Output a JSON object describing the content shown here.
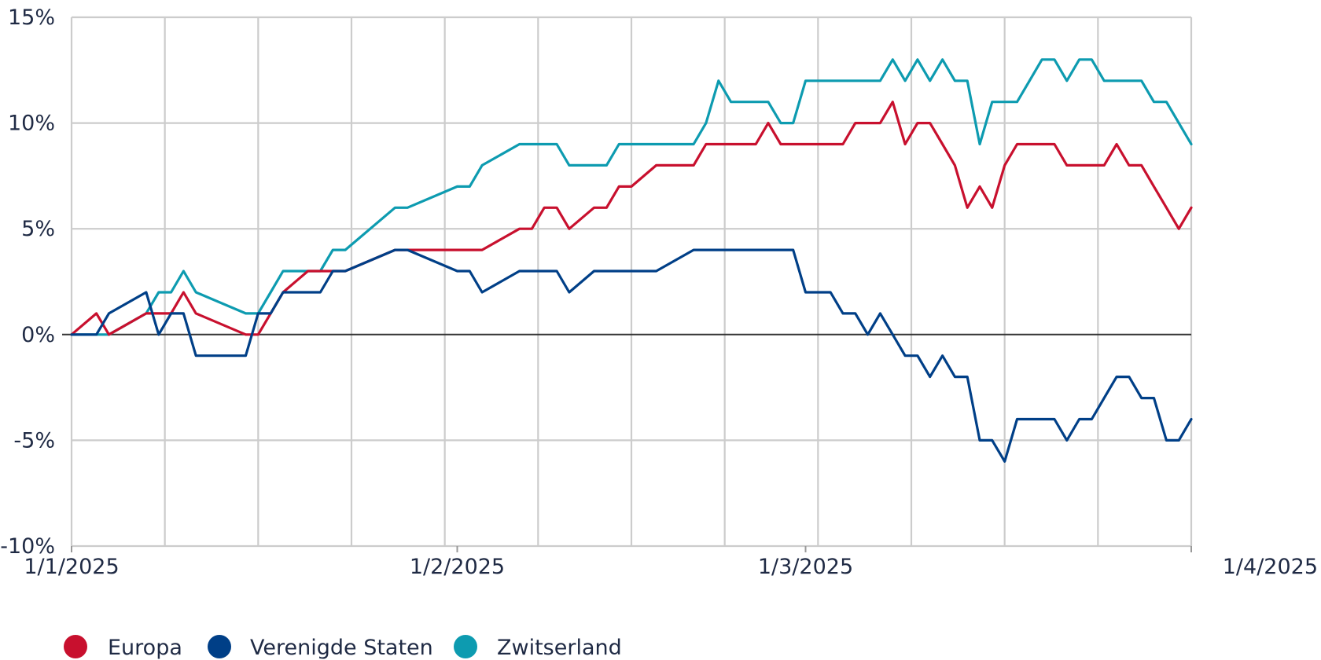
{
  "chart_data": {
    "type": "line",
    "title": "",
    "xlabel": "",
    "ylabel": "",
    "ylim": [
      -10,
      15
    ],
    "y_ticks": [
      "15%",
      "10%",
      "5%",
      "0%",
      "-5%",
      "-10%"
    ],
    "y_tick_values": [
      15,
      10,
      5,
      0,
      -5,
      -10
    ],
    "x_range": [
      "2025-01-01",
      "2025-04-01"
    ],
    "x_ticks": [
      "1/1/2025",
      "1/2/2025",
      "1/3/2025",
      "1/4/2025"
    ],
    "x_tick_dates": [
      "2025-01-01",
      "2025-02-01",
      "2025-03-01",
      "2025-04-01"
    ],
    "grid": true,
    "zero_line": true,
    "legend_position": "bottom-left",
    "series": [
      {
        "name": "Europa",
        "color": "#c8102e",
        "x": [
          "2025-01-01",
          "2025-01-03",
          "2025-01-04",
          "2025-01-07",
          "2025-01-08",
          "2025-01-09",
          "2025-01-10",
          "2025-01-11",
          "2025-01-15",
          "2025-01-16",
          "2025-01-17",
          "2025-01-18",
          "2025-01-20",
          "2025-01-21",
          "2025-01-22",
          "2025-01-23",
          "2025-01-27",
          "2025-01-28",
          "2025-02-01",
          "2025-02-02",
          "2025-02-03",
          "2025-02-06",
          "2025-02-07",
          "2025-02-08",
          "2025-02-09",
          "2025-02-10",
          "2025-02-12",
          "2025-02-13",
          "2025-02-14",
          "2025-02-15",
          "2025-02-17",
          "2025-02-20",
          "2025-02-21",
          "2025-02-22",
          "2025-02-23",
          "2025-02-24",
          "2025-02-25",
          "2025-02-26",
          "2025-02-27",
          "2025-02-28",
          "2025-03-01",
          "2025-03-02",
          "2025-03-03",
          "2025-03-04",
          "2025-03-05",
          "2025-03-06",
          "2025-03-07",
          "2025-03-08",
          "2025-03-09",
          "2025-03-10",
          "2025-03-11",
          "2025-03-12",
          "2025-03-13",
          "2025-03-14",
          "2025-03-15",
          "2025-03-16",
          "2025-03-17",
          "2025-03-18",
          "2025-03-19",
          "2025-03-20",
          "2025-03-21",
          "2025-03-22",
          "2025-03-23",
          "2025-03-24",
          "2025-03-25",
          "2025-03-26",
          "2025-03-27",
          "2025-03-28",
          "2025-03-29",
          "2025-03-30",
          "2025-03-31",
          "2025-04-01"
        ],
        "values": [
          0,
          1,
          0,
          1,
          1,
          1,
          2,
          1,
          0,
          0,
          1,
          2,
          3,
          3,
          3,
          3,
          4,
          4,
          4,
          4,
          4,
          5,
          5,
          6,
          6,
          5,
          6,
          6,
          7,
          7,
          8,
          8,
          9,
          9,
          9,
          9,
          9,
          10,
          9,
          9,
          9,
          9,
          9,
          9,
          10,
          10,
          10,
          11,
          9,
          10,
          10,
          9,
          8,
          6,
          7,
          6,
          8,
          9,
          9,
          9,
          9,
          8,
          8,
          8,
          8,
          9,
          8,
          8,
          7,
          6,
          5,
          6
        ]
      },
      {
        "name": "Verenigde Staten",
        "color": "#003f87",
        "x": [
          "2025-01-01",
          "2025-01-03",
          "2025-01-04",
          "2025-01-07",
          "2025-01-08",
          "2025-01-09",
          "2025-01-10",
          "2025-01-11",
          "2025-01-15",
          "2025-01-16",
          "2025-01-17",
          "2025-01-18",
          "2025-01-20",
          "2025-01-21",
          "2025-01-22",
          "2025-01-23",
          "2025-01-27",
          "2025-01-28",
          "2025-02-01",
          "2025-02-02",
          "2025-02-03",
          "2025-02-06",
          "2025-02-07",
          "2025-02-08",
          "2025-02-09",
          "2025-02-10",
          "2025-02-12",
          "2025-02-13",
          "2025-02-14",
          "2025-02-15",
          "2025-02-17",
          "2025-02-20",
          "2025-02-21",
          "2025-02-22",
          "2025-02-23",
          "2025-02-24",
          "2025-02-25",
          "2025-02-26",
          "2025-02-27",
          "2025-02-28",
          "2025-03-01",
          "2025-03-02",
          "2025-03-03",
          "2025-03-04",
          "2025-03-05",
          "2025-03-06",
          "2025-03-07",
          "2025-03-08",
          "2025-03-09",
          "2025-03-10",
          "2025-03-11",
          "2025-03-12",
          "2025-03-13",
          "2025-03-14",
          "2025-03-15",
          "2025-03-16",
          "2025-03-17",
          "2025-03-18",
          "2025-03-19",
          "2025-03-20",
          "2025-03-21",
          "2025-03-22",
          "2025-03-23",
          "2025-03-24",
          "2025-03-25",
          "2025-03-26",
          "2025-03-27",
          "2025-03-28",
          "2025-03-29",
          "2025-03-30",
          "2025-03-31",
          "2025-04-01"
        ],
        "values": [
          0,
          0,
          1,
          2,
          0,
          1,
          1,
          -1,
          -1,
          1,
          1,
          2,
          2,
          2,
          3,
          3,
          4,
          4,
          3,
          3,
          2,
          3,
          3,
          3,
          3,
          2,
          3,
          3,
          3,
          3,
          3,
          4,
          4,
          4,
          4,
          4,
          4,
          4,
          4,
          4,
          2,
          2,
          2,
          1,
          1,
          0,
          1,
          0,
          -1,
          -1,
          -2,
          -1,
          -2,
          -2,
          -5,
          -5,
          -6,
          -4,
          -4,
          -4,
          -4,
          -5,
          -4,
          -4,
          -3,
          -2,
          -2,
          -3,
          -3,
          -5,
          -5,
          -4
        ]
      },
      {
        "name": "Zwitserland",
        "color": "#0d9bb0",
        "x": [
          "2025-01-01",
          "2025-01-03",
          "2025-01-04",
          "2025-01-07",
          "2025-01-08",
          "2025-01-09",
          "2025-01-10",
          "2025-01-11",
          "2025-01-15",
          "2025-01-16",
          "2025-01-17",
          "2025-01-18",
          "2025-01-20",
          "2025-01-21",
          "2025-01-22",
          "2025-01-23",
          "2025-01-27",
          "2025-01-28",
          "2025-02-01",
          "2025-02-02",
          "2025-02-03",
          "2025-02-06",
          "2025-02-07",
          "2025-02-08",
          "2025-02-09",
          "2025-02-10",
          "2025-02-12",
          "2025-02-13",
          "2025-02-14",
          "2025-02-15",
          "2025-02-17",
          "2025-02-20",
          "2025-02-21",
          "2025-02-22",
          "2025-02-23",
          "2025-02-24",
          "2025-02-25",
          "2025-02-26",
          "2025-02-27",
          "2025-02-28",
          "2025-03-01",
          "2025-03-02",
          "2025-03-03",
          "2025-03-04",
          "2025-03-05",
          "2025-03-06",
          "2025-03-07",
          "2025-03-08",
          "2025-03-09",
          "2025-03-10",
          "2025-03-11",
          "2025-03-12",
          "2025-03-13",
          "2025-03-14",
          "2025-03-15",
          "2025-03-16",
          "2025-03-17",
          "2025-03-18",
          "2025-03-19",
          "2025-03-20",
          "2025-03-21",
          "2025-03-22",
          "2025-03-23",
          "2025-03-24",
          "2025-03-25",
          "2025-03-26",
          "2025-03-27",
          "2025-03-28",
          "2025-03-29",
          "2025-03-30",
          "2025-03-31",
          "2025-04-01"
        ],
        "values": [
          0,
          0,
          0,
          1,
          2,
          2,
          3,
          2,
          1,
          1,
          2,
          3,
          3,
          3,
          4,
          4,
          6,
          6,
          7,
          7,
          8,
          9,
          9,
          9,
          9,
          8,
          8,
          8,
          9,
          9,
          9,
          9,
          10,
          12,
          11,
          11,
          11,
          11,
          10,
          10,
          12,
          12,
          12,
          12,
          12,
          12,
          12,
          13,
          12,
          13,
          12,
          13,
          12,
          12,
          9,
          11,
          11,
          11,
          12,
          13,
          13,
          12,
          13,
          13,
          12,
          12,
          12,
          12,
          11,
          11,
          10,
          9
        ]
      }
    ]
  }
}
